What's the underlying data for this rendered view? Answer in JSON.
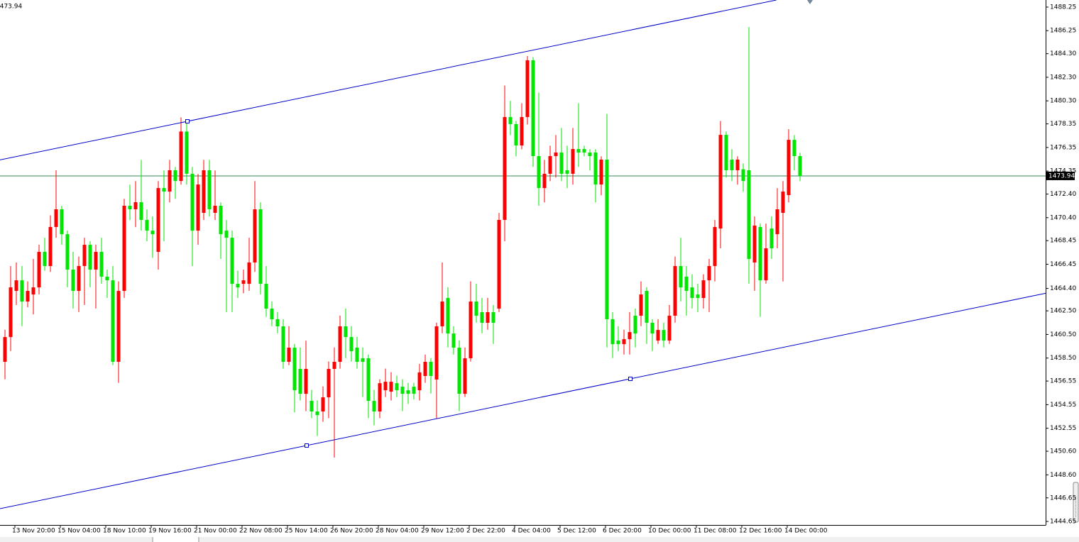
{
  "chart_data": {
    "type": "candlestick",
    "up_color": "#ff0000",
    "down_color": "#00e600",
    "price_line_color": "#2e8b57",
    "current_price": 1473.94,
    "ylim": [
      1444.35,
      1488.85
    ],
    "yticks": [
      1488.25,
      1486.25,
      {
        "value": 1484.3,
        "label": "1484.30"
      },
      {
        "value": 1482.3,
        "label": "1482.30"
      },
      {
        "value": 1480.3,
        "label": "1480.30"
      },
      1478.35,
      1476.35,
      1474.35,
      {
        "value": 1472.4,
        "label": "1472.40"
      },
      {
        "value": 1470.4,
        "label": "1470.40"
      },
      1468.45,
      1466.45,
      {
        "value": 1464.4,
        "label": "1464.40"
      },
      {
        "value": 1462.5,
        "label": "1462.50"
      },
      {
        "value": 1460.5,
        "label": "1460.50"
      },
      {
        "value": 1458.5,
        "label": "1458.50"
      },
      1456.55,
      1454.55,
      1452.55,
      {
        "value": 1450.6,
        "label": "1450.60"
      },
      {
        "value": 1448.6,
        "label": "1448.60"
      },
      1446.65,
      1444.65
    ],
    "categories": [
      null,
      null,
      "13 Nov 20:00",
      null,
      null,
      null,
      null,
      null,
      null,
      null,
      "15 Nov 04:00",
      null,
      null,
      null,
      null,
      null,
      null,
      null,
      "18 Nov 10:00",
      null,
      null,
      null,
      null,
      null,
      null,
      null,
      "19 Nov 16:00",
      null,
      null,
      null,
      null,
      null,
      null,
      null,
      "21 Nov 00:00",
      null,
      null,
      null,
      null,
      null,
      null,
      null,
      "22 Nov 08:00",
      null,
      null,
      null,
      null,
      null,
      null,
      null,
      "25 Nov 14:00",
      null,
      null,
      null,
      null,
      null,
      null,
      null,
      "26 Nov 20:00",
      null,
      null,
      null,
      null,
      null,
      null,
      null,
      "28 Nov 04:00",
      null,
      null,
      null,
      null,
      null,
      null,
      null,
      "29 Nov 12:00",
      null,
      null,
      null,
      null,
      null,
      null,
      null,
      "2 Dec 22:00",
      null,
      null,
      null,
      null,
      null,
      null,
      null,
      "4 Dec 04:00",
      null,
      null,
      null,
      null,
      null,
      null,
      null,
      "5 Dec 12:00",
      null,
      null,
      null,
      null,
      null,
      null,
      null,
      "6 Dec 20:00",
      null,
      null,
      null,
      null,
      null,
      null,
      null,
      "10 Dec 00:00",
      null,
      null,
      null,
      null,
      null,
      null,
      null,
      "11 Dec 08:00",
      null,
      null,
      null,
      null,
      null,
      null,
      null,
      "12 Dec 16:00",
      null,
      null,
      null,
      null,
      null,
      null,
      null,
      "14 Dec 00:00",
      null,
      null
    ],
    "ohlc": [
      [
        1458.18,
        1460.9,
        1456.7,
        1460.28
      ],
      [
        1460.28,
        1466.3,
        1459.1,
        1464.49
      ],
      [
        1464.19,
        1466.6,
        1463.0,
        1465.09
      ],
      [
        1465.09,
        1466.3,
        1461.2,
        1463.29
      ],
      [
        1463.29,
        1465.0,
        1462.8,
        1464.19
      ],
      [
        1463.89,
        1466.9,
        1462.2,
        1464.49
      ],
      [
        1464.49,
        1468.1,
        1463.9,
        1467.5
      ],
      [
        1467.5,
        1468.7,
        1465.9,
        1466.3
      ],
      [
        1466.3,
        1470.6,
        1465.8,
        1469.61
      ],
      [
        1469.61,
        1474.42,
        1468.7,
        1471.11
      ],
      [
        1471.11,
        1471.4,
        1468.1,
        1469.0
      ],
      [
        1469.0,
        1469.3,
        1464.5,
        1466.0
      ],
      [
        1466.0,
        1467.5,
        1462.7,
        1464.19
      ],
      [
        1464.19,
        1467.1,
        1462.4,
        1466.3
      ],
      [
        1466.3,
        1468.7,
        1463.0,
        1468.1
      ],
      [
        1468.1,
        1468.4,
        1464.5,
        1466.0
      ],
      [
        1466.0,
        1468.1,
        1462.7,
        1467.5
      ],
      [
        1467.5,
        1468.7,
        1464.8,
        1465.4
      ],
      [
        1465.4,
        1466.0,
        1463.6,
        1465.09
      ],
      [
        1465.09,
        1466.3,
        1457.9,
        1458.18
      ],
      [
        1458.18,
        1465.0,
        1456.4,
        1464.19
      ],
      [
        1464.19,
        1472.0,
        1463.6,
        1471.41
      ],
      [
        1471.41,
        1473.2,
        1470.2,
        1471.11
      ],
      [
        1471.11,
        1473.5,
        1469.6,
        1471.71
      ],
      [
        1471.71,
        1475.3,
        1469.3,
        1470.21
      ],
      [
        1470.21,
        1471.1,
        1468.4,
        1469.3
      ],
      [
        1469.3,
        1470.5,
        1467.0,
        1469.0
      ],
      [
        1467.5,
        1473.5,
        1466.0,
        1472.91
      ],
      [
        1472.91,
        1474.4,
        1468.4,
        1472.61
      ],
      [
        1472.61,
        1475.3,
        1471.7,
        1474.42
      ],
      [
        1474.42,
        1474.7,
        1472.0,
        1473.51
      ],
      [
        1473.51,
        1478.9,
        1473.2,
        1477.7
      ],
      [
        1477.7,
        1478.6,
        1473.2,
        1474.12
      ],
      [
        1474.12,
        1474.7,
        1466.3,
        1469.3
      ],
      [
        1469.3,
        1474.1,
        1468.1,
        1473.21
      ],
      [
        1470.81,
        1475.3,
        1470.2,
        1474.42
      ],
      [
        1474.42,
        1475.3,
        1470.5,
        1471.11
      ],
      [
        1470.81,
        1474.4,
        1470.2,
        1471.41
      ],
      [
        1471.41,
        1471.7,
        1466.9,
        1469.0
      ],
      [
        1469.3,
        1470.2,
        1462.4,
        1468.7
      ],
      [
        1468.7,
        1469.3,
        1462.4,
        1464.79
      ],
      [
        1464.79,
        1465.9,
        1463.6,
        1464.49
      ],
      [
        1464.79,
        1466.0,
        1464.0,
        1465.09
      ],
      [
        1464.79,
        1468.7,
        1464.2,
        1466.6
      ],
      [
        1466.6,
        1473.5,
        1465.8,
        1471.11
      ],
      [
        1471.11,
        1471.7,
        1463.9,
        1464.79
      ],
      [
        1464.79,
        1466.3,
        1462.0,
        1462.69
      ],
      [
        1462.69,
        1463.3,
        1461.2,
        1461.79
      ],
      [
        1461.79,
        1462.4,
        1460.6,
        1461.19
      ],
      [
        1461.19,
        1461.8,
        1457.6,
        1458.18
      ],
      [
        1458.18,
        1461.2,
        1457.9,
        1459.38
      ],
      [
        1459.38,
        1459.7,
        1453.9,
        1455.77
      ],
      [
        1457.58,
        1459.4,
        1454.9,
        1455.47
      ],
      [
        1455.47,
        1459.98,
        1454.0,
        1457.58
      ],
      [
        1454.87,
        1455.8,
        1453.4,
        1453.97
      ],
      [
        1453.97,
        1454.9,
        1451.9,
        1453.67
      ],
      [
        1453.97,
        1456.1,
        1453.1,
        1455.17
      ],
      [
        1455.17,
        1458.2,
        1453.4,
        1457.58
      ],
      [
        1457.58,
        1459.4,
        1450.06,
        1458.18
      ],
      [
        1458.18,
        1462.1,
        1457.6,
        1461.19
      ],
      [
        1461.19,
        1462.7,
        1458.5,
        1460.28
      ],
      [
        1460.28,
        1461.2,
        1458.2,
        1459.08
      ],
      [
        1459.38,
        1460.3,
        1457.6,
        1458.18
      ],
      [
        1458.48,
        1459.4,
        1455.2,
        1458.18
      ],
      [
        1458.48,
        1458.8,
        1453.4,
        1454.87
      ],
      [
        1454.87,
        1455.8,
        1452.8,
        1453.97
      ],
      [
        1453.97,
        1456.7,
        1453.4,
        1456.37
      ],
      [
        1455.77,
        1457.6,
        1455.2,
        1456.49
      ],
      [
        1455.65,
        1457.3,
        1454.9,
        1456.49
      ],
      [
        1456.37,
        1457.0,
        1455.2,
        1455.77
      ],
      [
        1456.07,
        1456.7,
        1454.0,
        1455.47
      ],
      [
        1455.77,
        1456.4,
        1454.6,
        1455.47
      ],
      [
        1456.07,
        1456.4,
        1455.0,
        1455.47
      ],
      [
        1455.77,
        1458.0,
        1454.9,
        1457.28
      ],
      [
        1456.98,
        1458.8,
        1456.4,
        1458.18
      ],
      [
        1458.18,
        1458.5,
        1455.5,
        1456.98
      ],
      [
        1456.68,
        1461.5,
        1453.4,
        1461.19
      ],
      [
        1461.19,
        1466.6,
        1460.6,
        1463.29
      ],
      [
        1463.59,
        1464.5,
        1459.4,
        1460.58
      ],
      [
        1460.58,
        1461.2,
        1458.8,
        1459.38
      ],
      [
        1459.38,
        1460.0,
        1454.0,
        1455.47
      ],
      [
        1455.47,
        1459.4,
        1455.2,
        1458.48
      ],
      [
        1458.48,
        1465.0,
        1458.2,
        1463.29
      ],
      [
        1463.29,
        1464.8,
        1461.5,
        1462.09
      ],
      [
        1462.39,
        1463.6,
        1460.6,
        1461.49
      ],
      [
        1461.49,
        1463.6,
        1460.9,
        1462.39
      ],
      [
        1462.39,
        1463.0,
        1459.7,
        1461.49
      ],
      [
        1462.69,
        1470.8,
        1462.4,
        1470.21
      ],
      [
        1470.21,
        1481.6,
        1468.4,
        1478.93
      ],
      [
        1478.93,
        1480.3,
        1477.4,
        1478.33
      ],
      [
        1478.33,
        1478.6,
        1475.6,
        1476.52
      ],
      [
        1476.52,
        1480.1,
        1476.2,
        1478.93
      ],
      [
        1478.93,
        1484.1,
        1478.3,
        1483.74
      ],
      [
        1483.74,
        1484.0,
        1474.7,
        1475.62
      ],
      [
        1475.62,
        1481.0,
        1471.4,
        1472.91
      ],
      [
        1472.91,
        1475.3,
        1471.7,
        1474.12
      ],
      [
        1474.12,
        1476.5,
        1473.5,
        1475.62
      ],
      [
        1475.62,
        1477.4,
        1473.8,
        1475.92
      ],
      [
        1475.92,
        1478.0,
        1473.5,
        1474.12
      ],
      [
        1474.42,
        1476.5,
        1472.9,
        1474.12
      ],
      [
        1474.12,
        1478.0,
        1473.2,
        1476.22
      ],
      [
        1476.22,
        1480.1,
        1474.7,
        1475.92
      ],
      [
        1476.22,
        1476.5,
        1475.6,
        1475.92
      ],
      [
        1475.92,
        1476.2,
        1474.4,
        1475.62
      ],
      [
        1475.92,
        1476.2,
        1471.7,
        1473.21
      ],
      [
        1473.21,
        1475.6,
        1472.3,
        1475.32
      ],
      [
        1475.32,
        1479.2,
        1459.4,
        1461.79
      ],
      [
        1461.79,
        1462.4,
        1458.5,
        1459.68
      ],
      [
        1459.98,
        1461.2,
        1459.1,
        1459.68
      ],
      [
        1459.68,
        1460.9,
        1458.8,
        1460.1
      ],
      [
        1460.1,
        1462.4,
        1458.8,
        1460.7
      ],
      [
        1462.09,
        1462.7,
        1459.4,
        1460.58
      ],
      [
        1462.09,
        1465.0,
        1461.2,
        1463.89
      ],
      [
        1464.19,
        1464.5,
        1459.7,
        1461.49
      ],
      [
        1461.49,
        1461.8,
        1459.1,
        1460.58
      ],
      [
        1459.98,
        1461.8,
        1459.7,
        1460.88
      ],
      [
        1460.88,
        1461.5,
        1459.4,
        1459.98
      ],
      [
        1459.98,
        1463.0,
        1459.7,
        1462.09
      ],
      [
        1462.09,
        1467.1,
        1461.5,
        1466.3
      ],
      [
        1466.3,
        1468.7,
        1463.3,
        1464.49
      ],
      [
        1465.4,
        1466.3,
        1462.1,
        1464.19
      ],
      [
        1464.49,
        1465.6,
        1462.7,
        1463.59
      ],
      [
        1463.89,
        1464.8,
        1462.4,
        1463.59
      ],
      [
        1463.59,
        1465.6,
        1462.7,
        1465.09
      ],
      [
        1465.09,
        1466.9,
        1462.4,
        1466.3
      ],
      [
        1466.3,
        1470.2,
        1465.0,
        1469.61
      ],
      [
        1469.48,
        1478.6,
        1467.8,
        1477.42
      ],
      [
        1477.42,
        1477.7,
        1473.8,
        1474.42
      ],
      [
        1475.32,
        1476.2,
        1473.5,
        1474.42
      ],
      [
        1474.42,
        1475.6,
        1473.2,
        1475.32
      ],
      [
        1474.5,
        1475.0,
        1472.6,
        1473.51
      ],
      [
        1474.42,
        1486.56,
        1464.8,
        1466.9
      ],
      [
        1466.6,
        1470.5,
        1464.2,
        1469.73
      ],
      [
        1469.61,
        1469.9,
        1462.0,
        1465.09
      ],
      [
        1465.09,
        1469.9,
        1464.8,
        1467.8
      ],
      [
        1469.48,
        1470.5,
        1466.9,
        1467.8
      ],
      [
        1469.0,
        1472.9,
        1467.8,
        1471.11
      ],
      [
        1470.81,
        1473.5,
        1465.0,
        1472.61
      ],
      [
        1472.31,
        1477.9,
        1471.7,
        1477.0
      ],
      [
        1477.0,
        1477.4,
        1474.4,
        1475.62
      ],
      [
        1475.62,
        1475.9,
        1473.5,
        1473.94
      ]
    ]
  }
}
